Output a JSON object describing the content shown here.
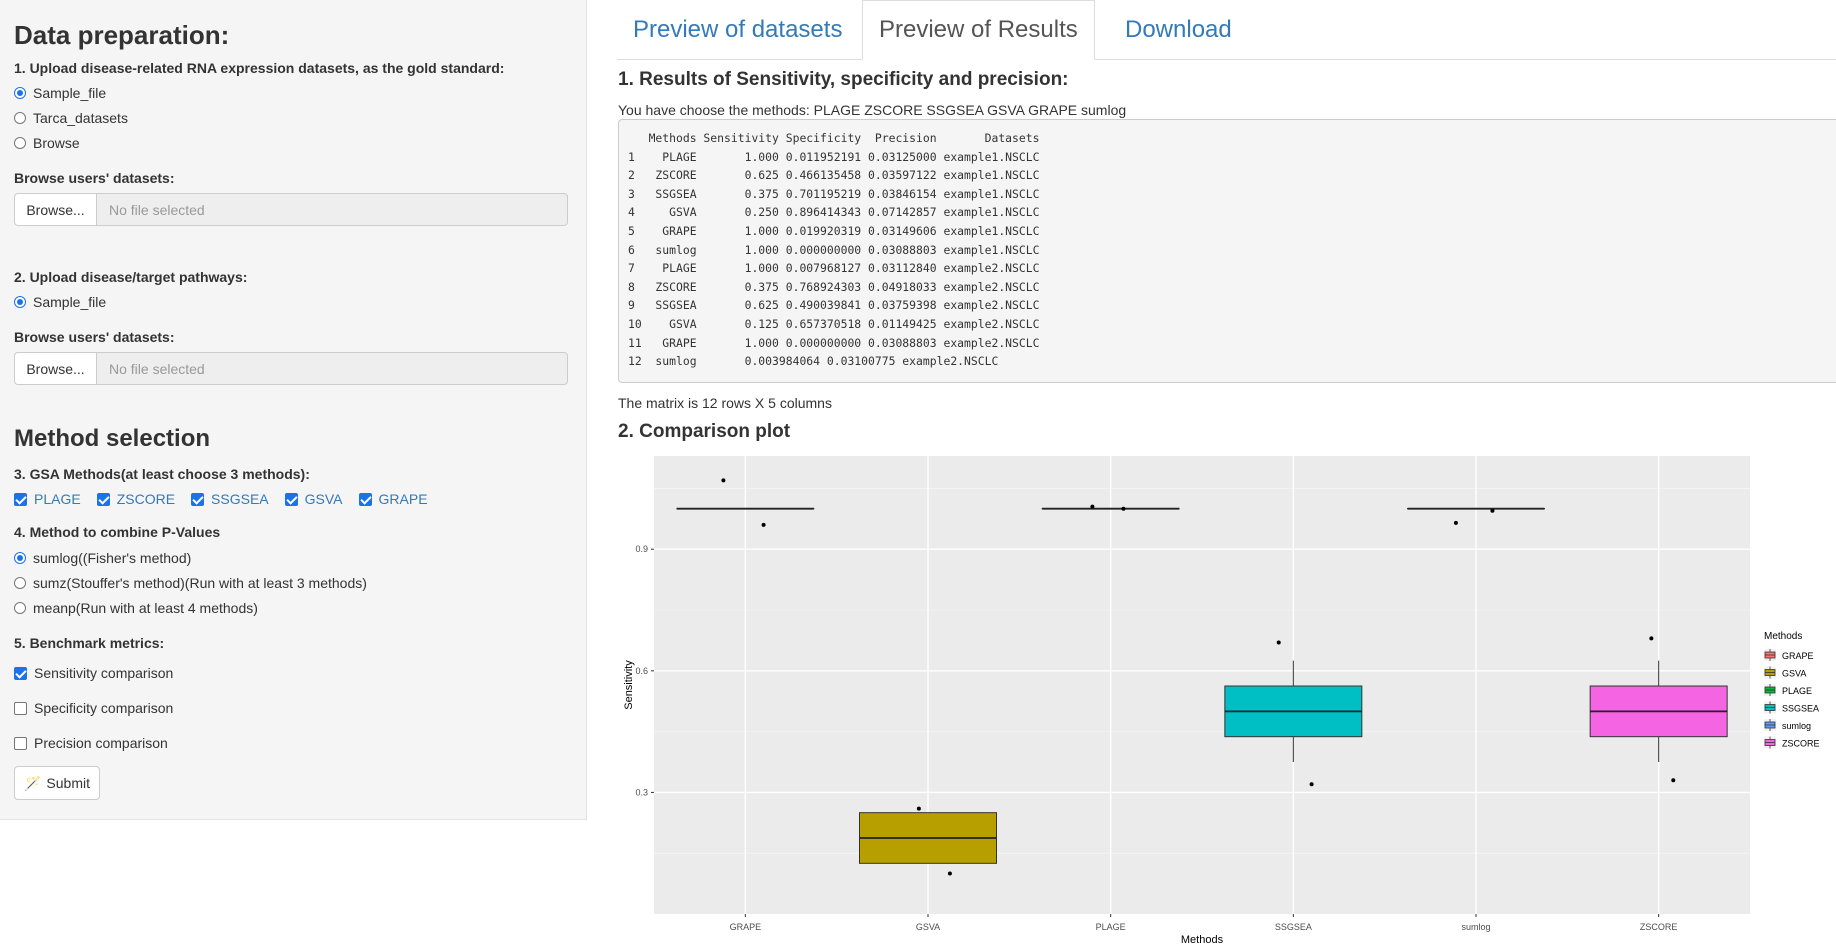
{
  "sidebar": {
    "data_prep_title": "Data preparation:",
    "step1_label": "1. Upload disease-related RNA expression datasets, as the gold standard:",
    "step1_options": [
      "Sample_file",
      "Tarca_datasets",
      "Browse"
    ],
    "step1_selected": "Sample_file",
    "browse_label_1": "Browse users' datasets:",
    "browse_button": "Browse...",
    "file_placeholder": "No file selected",
    "step2_label": "2. Upload disease/target pathways:",
    "step2_options": [
      "Sample_file"
    ],
    "browse_label_2": "Browse users' datasets:",
    "method_title": "Method selection",
    "step3_label": "3. GSA Methods(at least choose 3 methods):",
    "gsa_methods": [
      "PLAGE",
      "ZSCORE",
      "SSGSEA",
      "GSVA",
      "GRAPE"
    ],
    "step4_label": "4. Method to combine P-Values",
    "combine_options": [
      "sumlog((Fisher's method)",
      "sumz(Stouffer's method)(Run with at least 3 methods)",
      "meanp(Run with at least 4 methods)"
    ],
    "step5_label": "5. Benchmark metrics:",
    "metrics": [
      {
        "label": "Sensitivity comparison",
        "checked": true
      },
      {
        "label": "Specificity comparison",
        "checked": false
      },
      {
        "label": "Precision comparison",
        "checked": false
      }
    ],
    "submit_label": "Submit"
  },
  "tabs": [
    {
      "label": "Preview of datasets",
      "active": false
    },
    {
      "label": "Preview of Results",
      "active": true
    },
    {
      "label": "Download",
      "active": false
    }
  ],
  "results": {
    "section1_title": "1. Results of Sensitivity, specificity and precision:",
    "methods_text": "You have choose the methods: PLAGE ZSCORE SSGSEA GSVA GRAPE sumlog",
    "table_output": "   Methods Sensitivity Specificity  Precision       Datasets\n1    PLAGE       1.000 0.011952191 0.03125000 example1.NSCLC\n2   ZSCORE       0.625 0.466135458 0.03597122 example1.NSCLC\n3   SSGSEA       0.375 0.701195219 0.03846154 example1.NSCLC\n4     GSVA       0.250 0.896414343 0.07142857 example1.NSCLC\n5    GRAPE       1.000 0.019920319 0.03149606 example1.NSCLC\n6   sumlog       1.000 0.000000000 0.03088803 example1.NSCLC\n7    PLAGE       1.000 0.007968127 0.03112840 example2.NSCLC\n8   ZSCORE       0.375 0.768924303 0.04918033 example2.NSCLC\n9   SSGSEA       0.625 0.490039841 0.03759398 example2.NSCLC\n10    GSVA       0.125 0.657370518 0.01149425 example2.NSCLC\n11   GRAPE       1.000 0.000000000 0.03088803 example2.NSCLC\n12  sumlog       0.003984064 0.03100775 example2.NSCLC",
    "matrix_text": "The matrix is 12 rows X 5 columns",
    "section2_title": "2. Comparison plot"
  },
  "chart_data": {
    "type": "boxplot",
    "xlabel": "Methods",
    "ylabel": "Sensitivity",
    "categories": [
      "GRAPE",
      "GSVA",
      "PLAGE",
      "SSGSEA",
      "sumlog",
      "ZSCORE"
    ],
    "yticks": [
      0.3,
      0.6,
      0.9
    ],
    "ylim": [
      0.0,
      1.13
    ],
    "legend_title": "Methods",
    "legend_position": "right",
    "grid": true,
    "boxes": [
      {
        "name": "GRAPE",
        "q1": 1.0,
        "median": 1.0,
        "q3": 1.0,
        "lo": 1.0,
        "hi": 1.0,
        "color": "#F8766D"
      },
      {
        "name": "GSVA",
        "q1": 0.125,
        "median": 0.1875,
        "q3": 0.25,
        "lo": 0.125,
        "hi": 0.25,
        "color": "#B79F00"
      },
      {
        "name": "PLAGE",
        "q1": 1.0,
        "median": 1.0,
        "q3": 1.0,
        "lo": 1.0,
        "hi": 1.0,
        "color": "#00BA38"
      },
      {
        "name": "SSGSEA",
        "q1": 0.4375,
        "median": 0.5,
        "q3": 0.5625,
        "lo": 0.375,
        "hi": 0.625,
        "color": "#00BFC4"
      },
      {
        "name": "sumlog",
        "q1": 1.0,
        "median": 1.0,
        "q3": 1.0,
        "lo": 1.0,
        "hi": 1.0,
        "color": "#619CFF"
      },
      {
        "name": "ZSCORE",
        "q1": 0.4375,
        "median": 0.5,
        "q3": 0.5625,
        "lo": 0.375,
        "hi": 0.625,
        "color": "#F564E3"
      }
    ],
    "points": [
      {
        "category": "GRAPE",
        "y": 1.07
      },
      {
        "category": "GRAPE",
        "y": 0.96
      },
      {
        "category": "GSVA",
        "y": 0.26
      },
      {
        "category": "GSVA",
        "y": 0.1
      },
      {
        "category": "PLAGE",
        "y": 1.005
      },
      {
        "category": "PLAGE",
        "y": 1.0
      },
      {
        "category": "SSGSEA",
        "y": 0.67
      },
      {
        "category": "SSGSEA",
        "y": 0.32
      },
      {
        "category": "sumlog",
        "y": 0.965
      },
      {
        "category": "sumlog",
        "y": 0.995
      },
      {
        "category": "ZSCORE",
        "y": 0.68
      },
      {
        "category": "ZSCORE",
        "y": 0.33
      }
    ]
  }
}
